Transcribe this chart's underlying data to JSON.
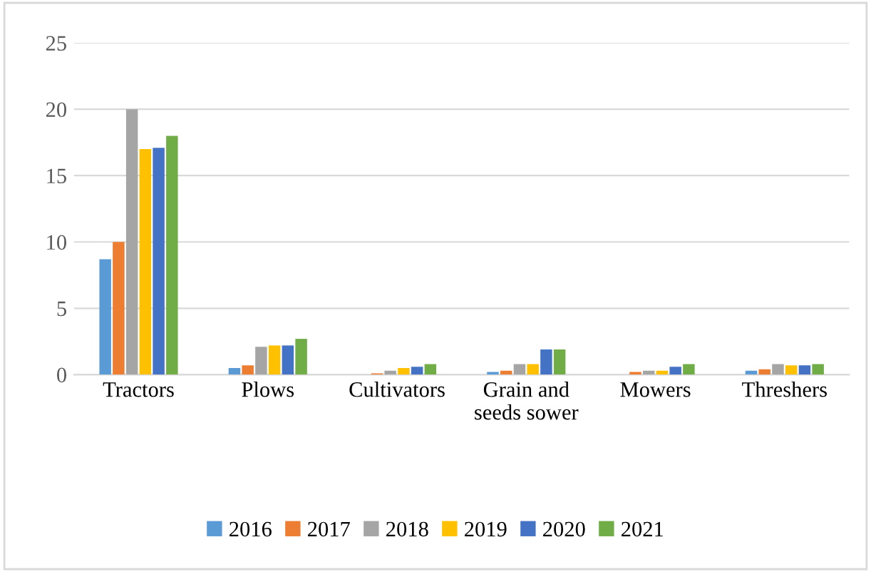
{
  "chart_data": {
    "type": "bar",
    "categories": [
      "Tractors",
      "Plows",
      "Cultivators",
      "Grain and seeds sower",
      "Mowers",
      "Threshers"
    ],
    "series": [
      {
        "name": "2016",
        "color": "#5b9bd5",
        "values": [
          8.7,
          0.5,
          0,
          0.2,
          0,
          0.3
        ]
      },
      {
        "name": "2017",
        "color": "#ed7d31",
        "values": [
          10,
          0.7,
          0.1,
          0.3,
          0.2,
          0.4
        ]
      },
      {
        "name": "2018",
        "color": "#a5a5a5",
        "values": [
          20,
          2.1,
          0.3,
          0.8,
          0.3,
          0.8
        ]
      },
      {
        "name": "2019",
        "color": "#ffc000",
        "values": [
          17,
          2.2,
          0.5,
          0.8,
          0.3,
          0.7
        ]
      },
      {
        "name": "2020",
        "color": "#4472c4",
        "values": [
          17.1,
          2.2,
          0.6,
          1.9,
          0.6,
          0.7
        ]
      },
      {
        "name": "2021",
        "color": "#70ad47",
        "values": [
          18,
          2.7,
          0.8,
          1.9,
          0.8,
          0.8
        ]
      }
    ],
    "ylim": [
      0,
      25
    ],
    "yticks": [
      0,
      5,
      10,
      15,
      20,
      25
    ],
    "grid": "y",
    "legend": "bottom"
  }
}
